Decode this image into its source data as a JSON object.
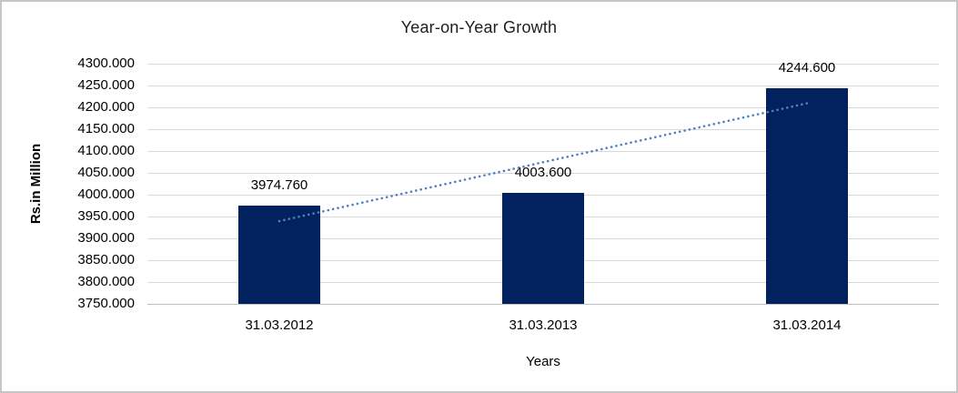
{
  "chart_data": {
    "type": "bar",
    "title": "Year-on-Year Growth",
    "xlabel": "Years",
    "ylabel": "Rs.in Million",
    "categories": [
      "31.03.2012",
      "31.03.2013",
      "31.03.2014"
    ],
    "values": [
      3974.76,
      4003.6,
      4244.6
    ],
    "value_labels": [
      "3974.760",
      "4003.600",
      "4244.600"
    ],
    "ylim": [
      3750,
      4300
    ],
    "tick_step": 50,
    "decimal_places": 3,
    "grid": "horizontal",
    "legend": "none",
    "bar_color": "#01215f",
    "trendline": {
      "type": "linear",
      "style": "dotted",
      "color": "#4f81bd",
      "endpoint_values": [
        3939.4,
        4209.25
      ]
    }
  }
}
